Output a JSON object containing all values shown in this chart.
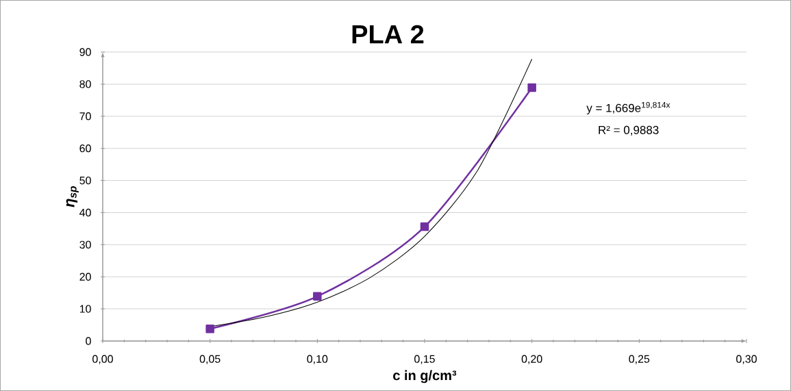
{
  "chart_data": {
    "type": "line",
    "title": "PLA 2",
    "xlabel": "c in g/cm³",
    "ylabel": "η$_{sp}$",
    "series": [
      {
        "color": "#7030a0",
        "marker": "square",
        "line_style": "solid",
        "x": [
          0.05,
          0.1,
          0.15,
          0.2
        ],
        "values": [
          3.8,
          13.9,
          35.6,
          78.9
        ]
      },
      {
        "color": "#000000",
        "marker": "none",
        "line_style": "solid",
        "x": [
          0.05,
          0.075,
          0.1,
          0.125,
          0.15,
          0.175,
          0.2
        ],
        "values": [
          4.5,
          7.4,
          12.1,
          19.9,
          32.6,
          53.5,
          87.8
        ]
      }
    ],
    "annotations": [
      "y = 1,669e$^{19,814x}$",
      "R² = 0,9883"
    ],
    "xlim": [
      0,
      0.3
    ],
    "xticks": [
      {
        "value": 0,
        "label": "0,00"
      },
      {
        "value": 0.05,
        "label": "0,05"
      },
      {
        "value": 0.1,
        "label": "0,10"
      },
      {
        "value": 0.15,
        "label": "0,15"
      },
      {
        "value": 0.2,
        "label": "0,20"
      },
      {
        "value": 0.25,
        "label": "0,25"
      },
      {
        "value": 0.3,
        "label": "0,30"
      }
    ],
    "ylim": [
      0,
      90
    ],
    "yticks": [
      0,
      10,
      20,
      30,
      40,
      50,
      60,
      70,
      80,
      90
    ],
    "grid": "y"
  }
}
